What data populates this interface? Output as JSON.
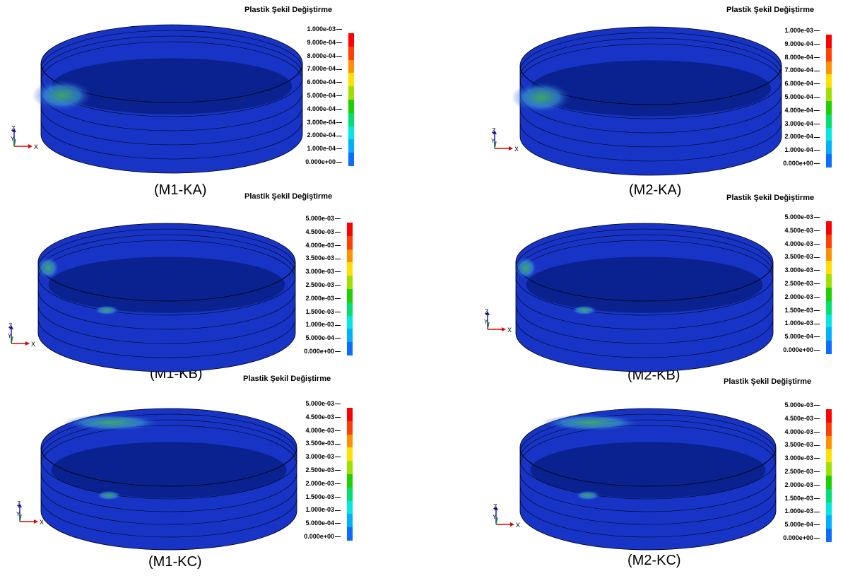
{
  "legend_title": "Plastik Şekil Değiştirme",
  "colors": [
    "#0000ff",
    "#0a6dff",
    "#00b0ff",
    "#00e8e0",
    "#00e070",
    "#1ed000",
    "#a0e000",
    "#ffe000",
    "#ff9000",
    "#ff4000",
    "#ff0000"
  ],
  "tank_colors": {
    "shell": "#1734c6",
    "shell_dark": "#14289c",
    "floor": "#0a2290",
    "hotspot": "#3fae5a",
    "hotspot_light": "#3fa0d8"
  },
  "axis_labels": {
    "z": "Z",
    "y": "Y",
    "x": "X"
  },
  "panels": [
    {
      "caption": "(M1-KA)",
      "ticks": [
        "1.000e-03",
        "9.000e-04",
        "8.000e-04",
        "7.000e-04",
        "6.000e-04",
        "5.000e-04",
        "4.000e-04",
        "3.000e-04",
        "2.000e-04",
        "1.000e-04",
        "0.000e+00"
      ],
      "hotspots": [
        "left-wall"
      ]
    },
    {
      "caption": "(M2-KA)",
      "ticks": [
        "1.000e-03",
        "9.000e-04",
        "8.000e-04",
        "7.000e-04",
        "6.000e-04",
        "5.000e-04",
        "4.000e-04",
        "3.000e-04",
        "2.000e-04",
        "1.000e-04",
        "0.000e+00"
      ],
      "hotspots": [
        "left-wall"
      ]
    },
    {
      "caption": "(M1-KB)",
      "ticks": [
        "5.000e-03",
        "4.500e-03",
        "4.000e-03",
        "3.500e-03",
        "3.000e-03",
        "2.500e-03",
        "2.000e-03",
        "1.500e-03",
        "1.000e-03",
        "5.000e-04",
        "0.000e+00"
      ],
      "hotspots": [
        "left-rim",
        "front-band"
      ]
    },
    {
      "caption": "(M2-KB)",
      "ticks": [
        "5.000e-03",
        "4.500e-03",
        "4.000e-03",
        "3.500e-03",
        "3.000e-03",
        "2.500e-03",
        "2.000e-03",
        "1.500e-03",
        "1.000e-03",
        "5.000e-04",
        "0.000e+00"
      ],
      "hotspots": [
        "left-rim",
        "front-band"
      ]
    },
    {
      "caption": "(M1-KC)",
      "ticks": [
        "5.000e-03",
        "4.500e-03",
        "4.000e-03",
        "3.500e-03",
        "3.000e-03",
        "2.500e-03",
        "2.000e-03",
        "1.500e-03",
        "1.000e-03",
        "5.000e-04",
        "0.000e+00"
      ],
      "hotspots": [
        "back-rim",
        "front-band"
      ]
    },
    {
      "caption": "(M2-KC)",
      "ticks": [
        "5.000e-03",
        "4.500e-03",
        "4.000e-03",
        "3.500e-03",
        "3.000e-03",
        "2.500e-03",
        "2.000e-03",
        "1.500e-03",
        "1.000e-03",
        "5.000e-04",
        "0.000e+00"
      ],
      "hotspots": [
        "back-rim",
        "front-band"
      ]
    }
  ]
}
